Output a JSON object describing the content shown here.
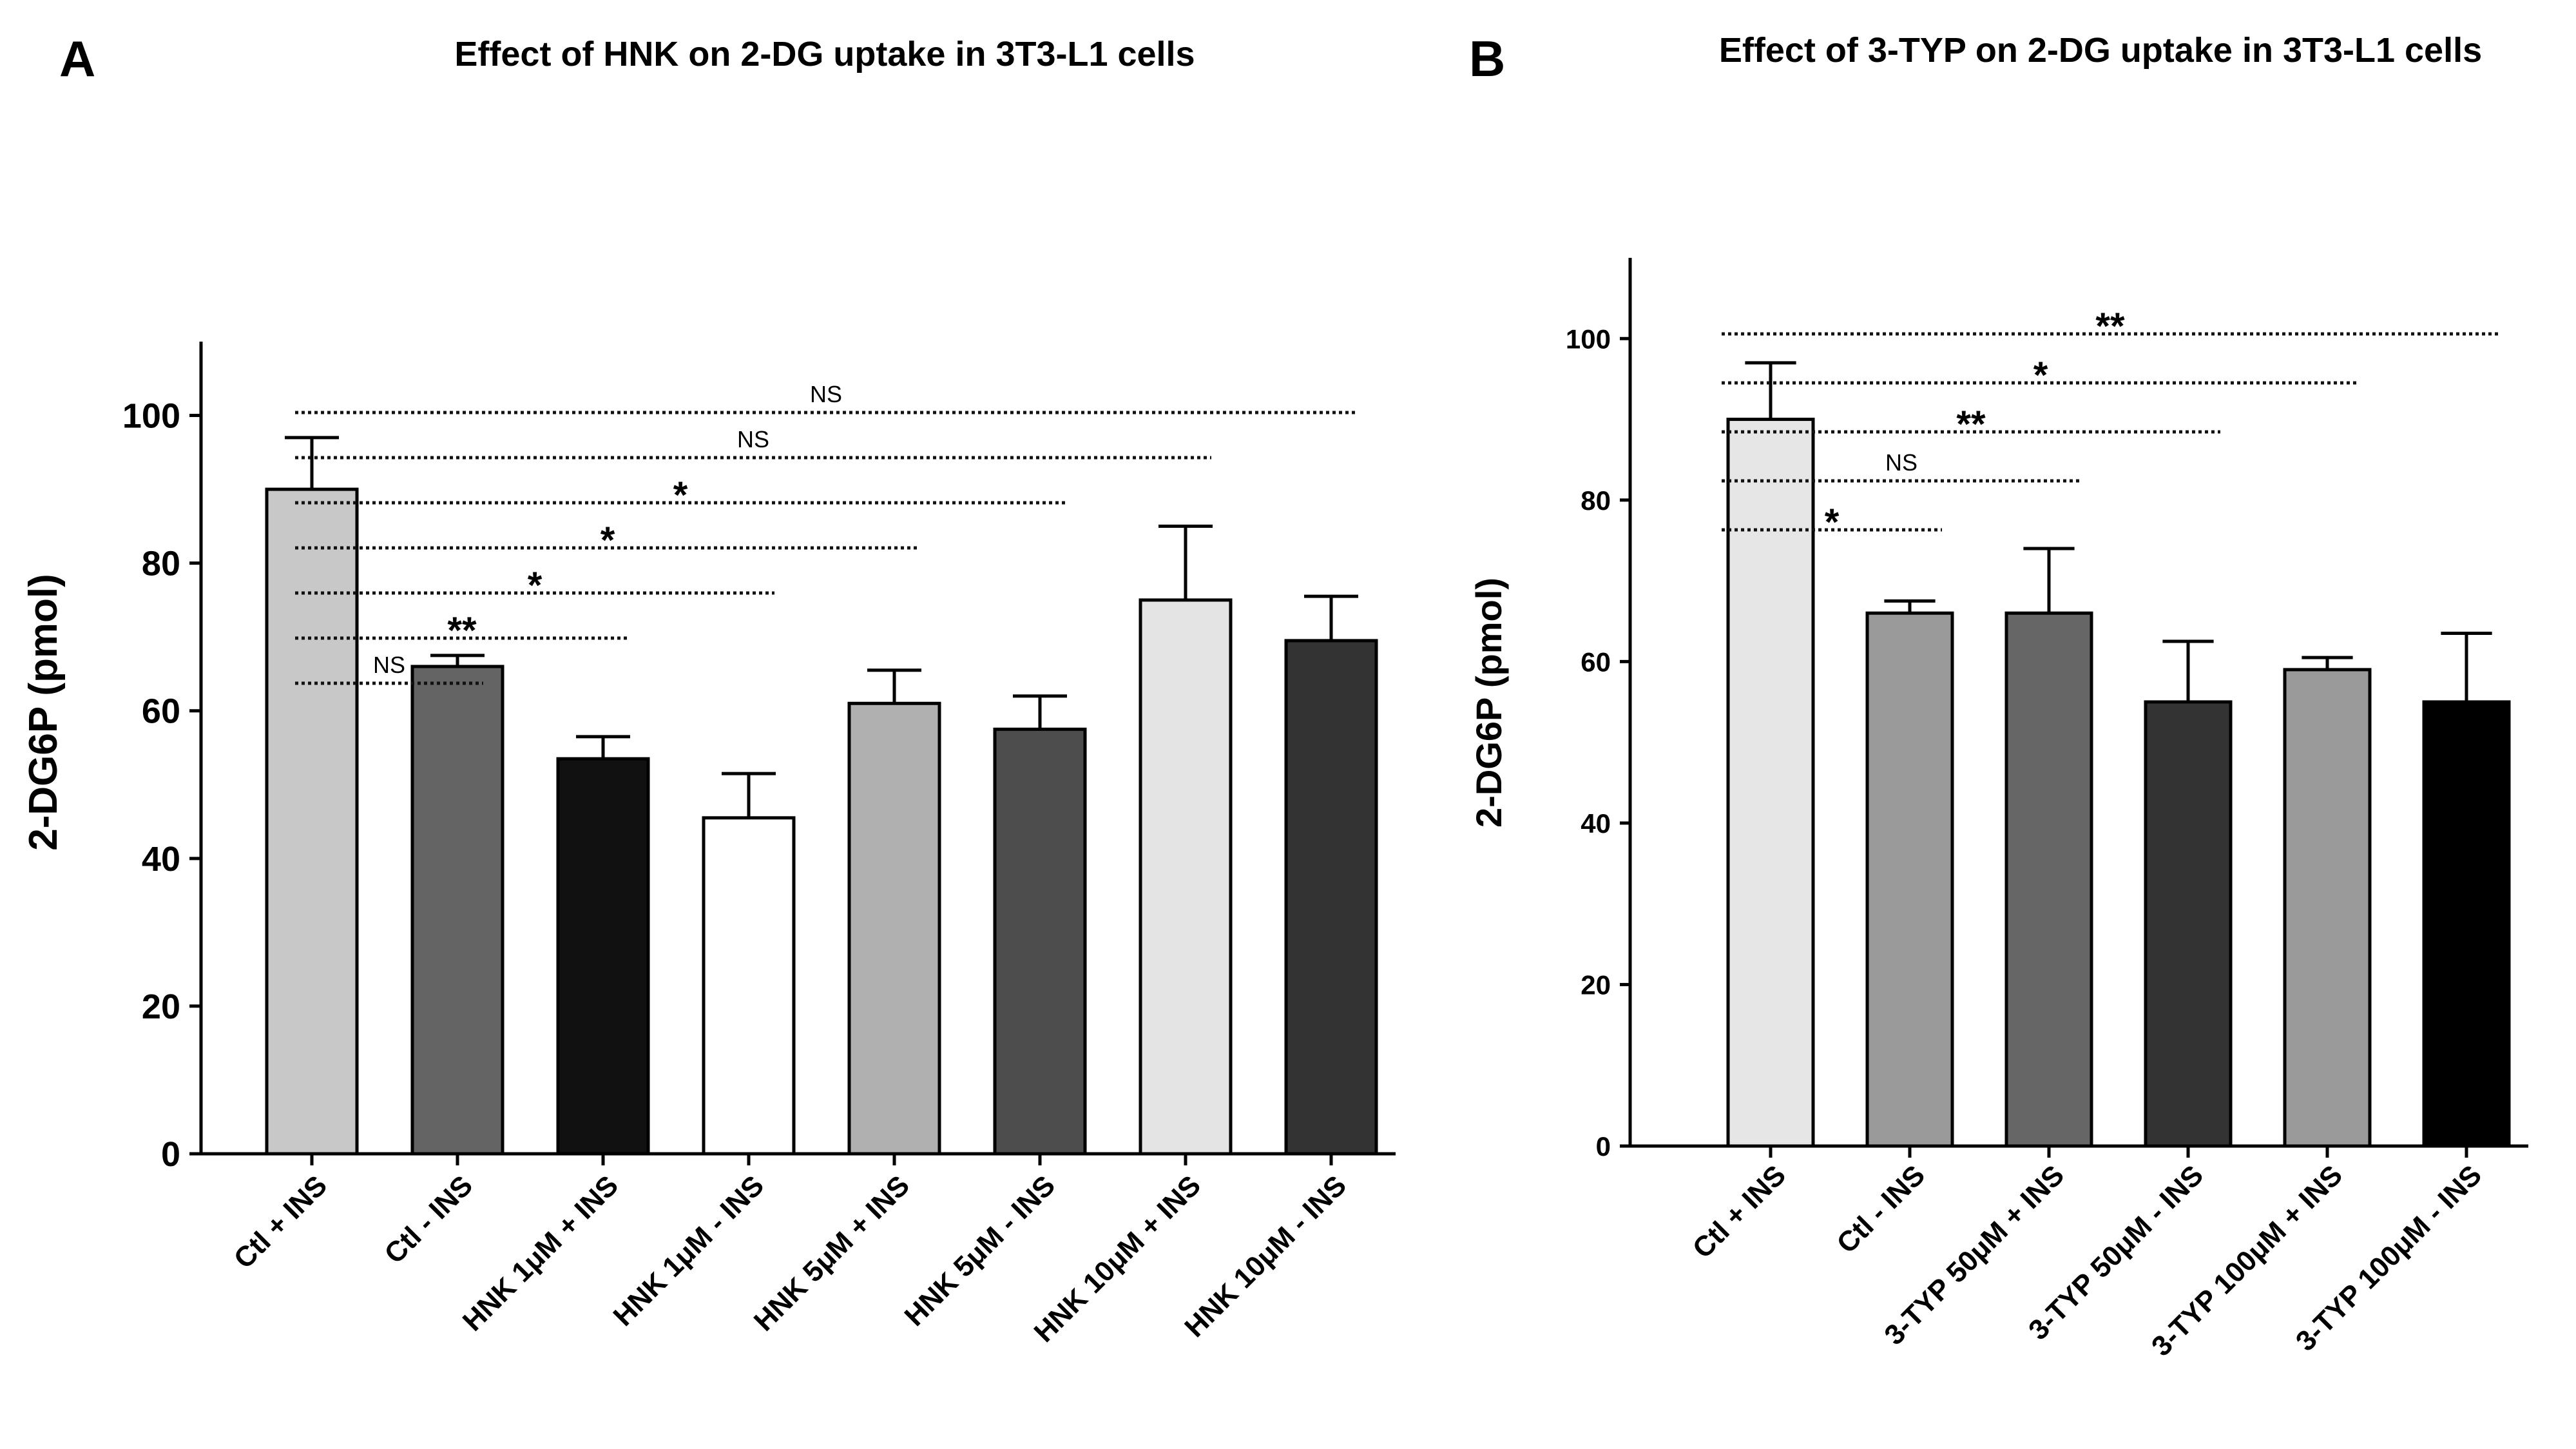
{
  "chart_data": [
    {
      "panel": "A",
      "type": "bar",
      "title": "Effect of HNK on 2-DG uptake in 3T3-L1 cells",
      "xlabel": "",
      "ylabel": "2-DG6P (pmol)",
      "ylim": [
        0,
        110
      ],
      "yticks": [
        0,
        20,
        40,
        60,
        80,
        100
      ],
      "categories": [
        "Ctl + INS",
        "Ctl - INS",
        "HNK 1μM + INS",
        "HNK 1μM - INS",
        "HNK 5μM + INS",
        "HNK 5μM - INS",
        "HNK 10μM + INS",
        "HNK 10μM - INS"
      ],
      "values": [
        90,
        66,
        53.5,
        45.5,
        61,
        57.5,
        75,
        69.5
      ],
      "errors": [
        7,
        1.5,
        3,
        6,
        4.5,
        4.5,
        10,
        6
      ],
      "colors": [
        "#c8c8c8",
        "#646464",
        "#111111",
        "#ffffff",
        "#b0b0b0",
        "#4d4d4d",
        "#e4e4e4",
        "#333333"
      ],
      "significance": [
        {
          "from": 0,
          "to": 1,
          "label": "NS"
        },
        {
          "from": 0,
          "to": 2,
          "label": "**"
        },
        {
          "from": 0,
          "to": 3,
          "label": "*"
        },
        {
          "from": 0,
          "to": 4,
          "label": "*"
        },
        {
          "from": 0,
          "to": 5,
          "label": "*"
        },
        {
          "from": 0,
          "to": 6,
          "label": "NS"
        },
        {
          "from": 0,
          "to": 7,
          "label": "NS"
        }
      ]
    },
    {
      "panel": "B",
      "type": "bar",
      "title": "Effect of 3-TYP on 2-DG uptake in 3T3-L1 cells",
      "xlabel": "",
      "ylabel": "2-DG6P (pmol)",
      "ylim": [
        0,
        110
      ],
      "yticks": [
        0,
        20,
        40,
        60,
        80,
        100
      ],
      "categories": [
        "Ctl + INS",
        "Ctl - INS",
        "3-TYP 50μM + INS",
        "3-TYP 50μM - INS",
        "3-TYP 100μM + INS",
        "3-TYP 100μM - INS"
      ],
      "values": [
        90,
        66,
        66,
        55,
        59,
        55
      ],
      "errors": [
        7,
        1.5,
        8,
        7.5,
        1.5,
        8.5
      ],
      "colors": [
        "#e6e6e6",
        "#9a9a9a",
        "#666666",
        "#333333",
        "#9a9a9a",
        "#000000"
      ],
      "significance": [
        {
          "from": 0,
          "to": 1,
          "label": "*"
        },
        {
          "from": 0,
          "to": 2,
          "label": "NS"
        },
        {
          "from": 0,
          "to": 3,
          "label": "**"
        },
        {
          "from": 0,
          "to": 4,
          "label": "*"
        },
        {
          "from": 0,
          "to": 5,
          "label": "**"
        }
      ]
    }
  ]
}
